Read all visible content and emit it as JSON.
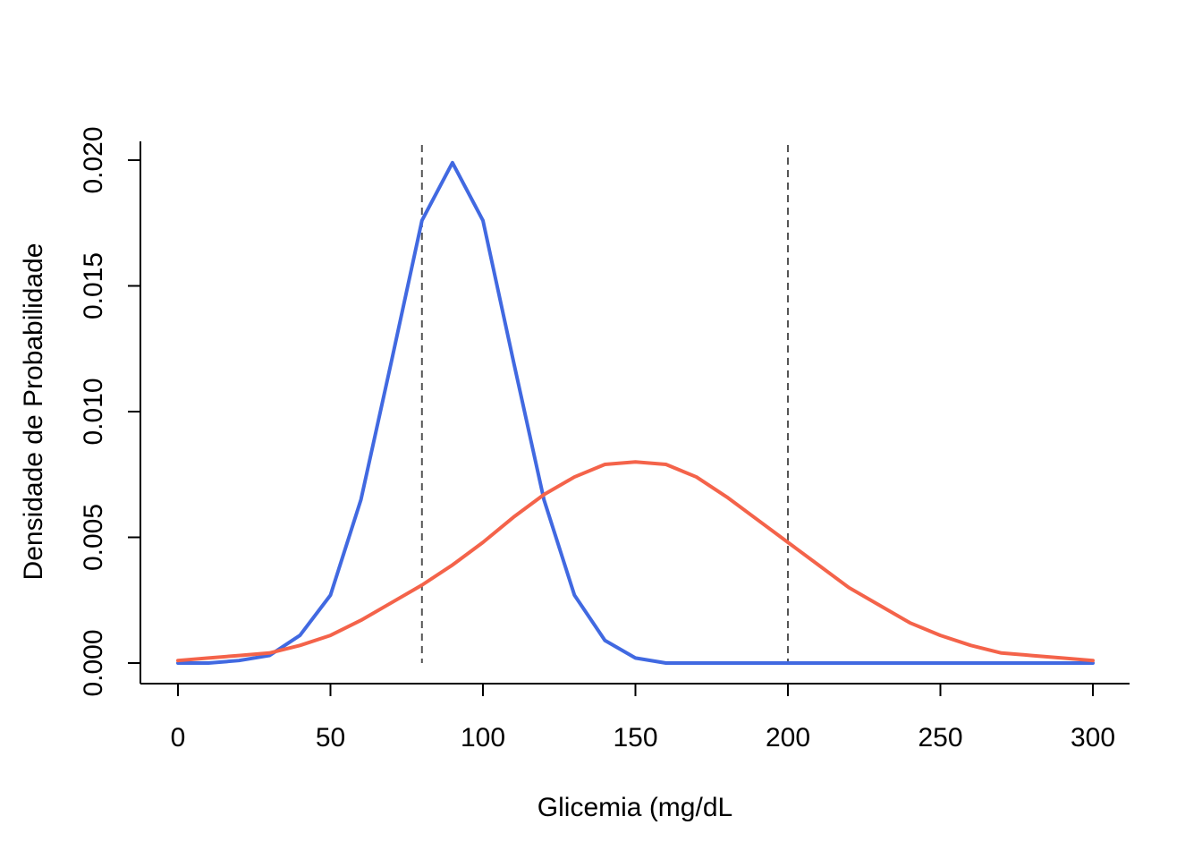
{
  "chart_data": {
    "type": "line",
    "title": "",
    "xlabel": "Glicemia (mg/dL",
    "ylabel": "Densidade de Probabilidade",
    "xlim": [
      0,
      300
    ],
    "ylim": [
      0,
      0.02
    ],
    "xticks": [
      0,
      50,
      100,
      150,
      200,
      250,
      300
    ],
    "xtick_labels": [
      "0",
      "50",
      "100",
      "150",
      "200",
      "250",
      "300"
    ],
    "yticks": [
      0,
      0.005,
      0.01,
      0.015,
      0.02
    ],
    "ytick_labels": [
      "0.000",
      "0.005",
      "0.010",
      "0.015",
      "0.020"
    ],
    "grid": false,
    "legend": "none",
    "reference_lines": [
      {
        "orientation": "vertical",
        "x": 80,
        "style": "dashed",
        "color": "#555555"
      },
      {
        "orientation": "vertical",
        "x": 200,
        "style": "dashed",
        "color": "#555555"
      }
    ],
    "series": [
      {
        "color": "#4169E1",
        "x": [
          0,
          10,
          20,
          30,
          40,
          50,
          60,
          70,
          80,
          90,
          100,
          110,
          120,
          130,
          140,
          150,
          160,
          170,
          180,
          190,
          200,
          210,
          220,
          230,
          240,
          250,
          260,
          270,
          280,
          290,
          300
        ],
        "y": [
          0.0,
          0.0,
          0.0001,
          0.0003,
          0.0011,
          0.0027,
          0.0065,
          0.012,
          0.0176,
          0.0199,
          0.0176,
          0.012,
          0.0065,
          0.0027,
          0.0009,
          0.0002,
          0.0,
          0.0,
          0.0,
          0.0,
          0.0,
          0.0,
          0.0,
          0.0,
          0.0,
          0.0,
          0.0,
          0.0,
          0.0,
          0.0,
          0.0
        ]
      },
      {
        "color": "#F4634A",
        "x": [
          0,
          10,
          20,
          30,
          40,
          50,
          60,
          70,
          80,
          90,
          100,
          110,
          120,
          130,
          140,
          150,
          160,
          170,
          180,
          190,
          200,
          210,
          220,
          230,
          240,
          250,
          260,
          270,
          280,
          290,
          300
        ],
        "y": [
          0.0001,
          0.0002,
          0.0003,
          0.0004,
          0.0007,
          0.0011,
          0.0017,
          0.0024,
          0.0031,
          0.0039,
          0.0048,
          0.0058,
          0.0067,
          0.0074,
          0.0079,
          0.008,
          0.0079,
          0.0074,
          0.0066,
          0.0057,
          0.0048,
          0.0039,
          0.003,
          0.0023,
          0.0016,
          0.0011,
          0.0007,
          0.0004,
          0.0003,
          0.0002,
          0.0001
        ]
      }
    ]
  }
}
